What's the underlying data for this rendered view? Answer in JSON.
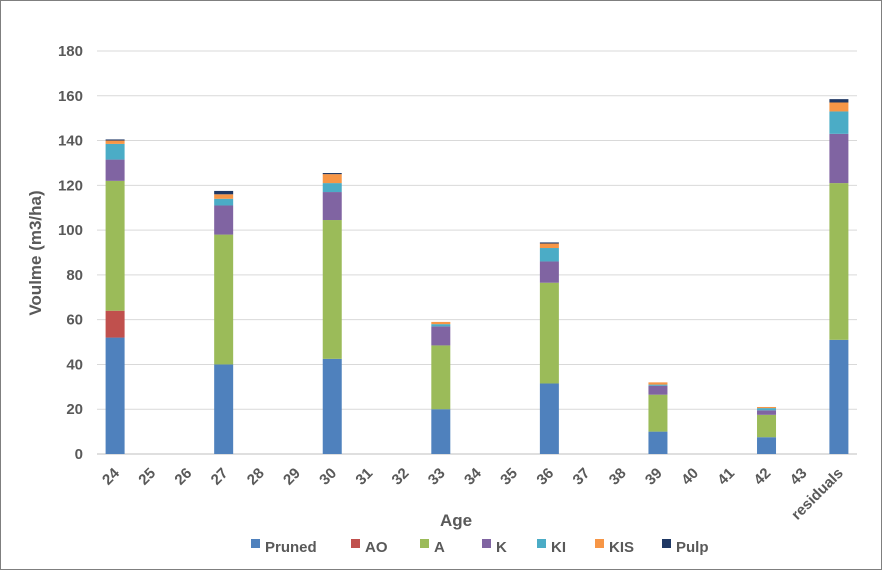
{
  "chart_data": {
    "type": "bar",
    "stacked": true,
    "title": "",
    "xlabel": "Age",
    "ylabel": "Voulme (m3/ha)",
    "ylim": [
      0,
      180
    ],
    "yticks": [
      0,
      20,
      40,
      60,
      80,
      100,
      120,
      140,
      160,
      180
    ],
    "grid": true,
    "legend_position": "bottom",
    "categories": [
      "24",
      "25",
      "26",
      "27",
      "28",
      "29",
      "30",
      "31",
      "32",
      "33",
      "34",
      "35",
      "36",
      "37",
      "38",
      "39",
      "40",
      "41",
      "42",
      "43",
      "residuals"
    ],
    "series": [
      {
        "name": "Pruned",
        "color": "#4f81bd",
        "values": [
          52,
          0,
          0,
          40,
          0,
          0,
          42.5,
          0,
          0,
          20,
          0,
          0,
          31.5,
          0,
          0,
          10,
          0,
          0,
          7.5,
          0,
          51
        ]
      },
      {
        "name": "AO",
        "color": "#c0504d",
        "values": [
          12,
          0,
          0,
          0,
          0,
          0,
          0,
          0,
          0,
          0,
          0,
          0,
          0,
          0,
          0,
          0,
          0,
          0,
          0,
          0,
          0
        ]
      },
      {
        "name": "A",
        "color": "#9bbb59",
        "values": [
          58,
          0,
          0,
          58,
          0,
          0,
          62,
          0,
          0,
          28.5,
          0,
          0,
          45,
          0,
          0,
          16.5,
          0,
          0,
          10,
          0,
          70
        ]
      },
      {
        "name": "K",
        "color": "#8064a2",
        "values": [
          9.5,
          0,
          0,
          13,
          0,
          0,
          12.5,
          0,
          0,
          8.5,
          0,
          0,
          9.5,
          0,
          0,
          4,
          0,
          0,
          2,
          0,
          22
        ]
      },
      {
        "name": "KI",
        "color": "#4bacc6",
        "values": [
          7,
          0,
          0,
          3,
          0,
          0,
          4,
          0,
          0,
          1,
          0,
          0,
          6,
          0,
          0,
          0.5,
          0,
          0,
          1,
          0,
          10
        ]
      },
      {
        "name": "KIS",
        "color": "#f79646",
        "values": [
          1.5,
          0,
          0,
          2,
          0,
          0,
          4,
          0,
          0,
          1,
          0,
          0,
          2,
          0,
          0,
          1,
          0,
          0,
          0.5,
          0,
          4
        ]
      },
      {
        "name": "Pulp",
        "color": "#1f3864",
        "values": [
          0.5,
          0,
          0,
          1.5,
          0,
          0,
          0.5,
          0,
          0,
          0,
          0,
          0,
          0.5,
          0,
          0,
          0,
          0,
          0,
          0,
          0,
          1.5
        ]
      }
    ]
  }
}
